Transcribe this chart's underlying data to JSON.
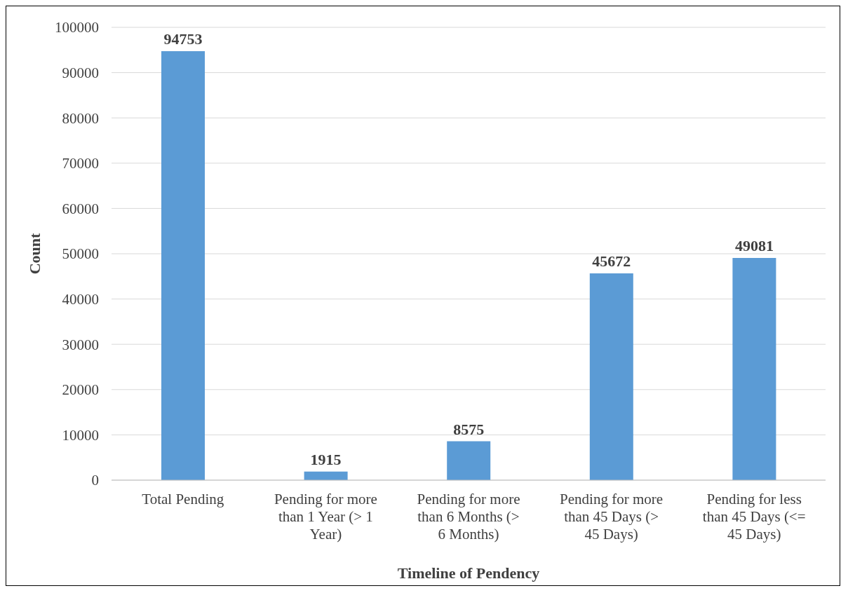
{
  "chart_data": {
    "type": "bar",
    "xlabel": "Timeline of Pendency",
    "ylabel": "Count",
    "categories": [
      "Total Pending",
      "Pending for more than 1 Year (> 1 Year)",
      "Pending for more than 6 Months (> 6 Months)",
      "Pending for more than 45 Days (> 45 Days)",
      "Pending for less than 45 Days (<= 45 Days)"
    ],
    "values": [
      94753,
      1915,
      8575,
      45672,
      49081
    ],
    "color": "#5b9bd5",
    "ylim": [
      0,
      100000
    ],
    "yticks": [
      0,
      10000,
      20000,
      30000,
      40000,
      50000,
      60000,
      70000,
      80000,
      90000,
      100000
    ],
    "grid": "y",
    "data_labels": true
  }
}
